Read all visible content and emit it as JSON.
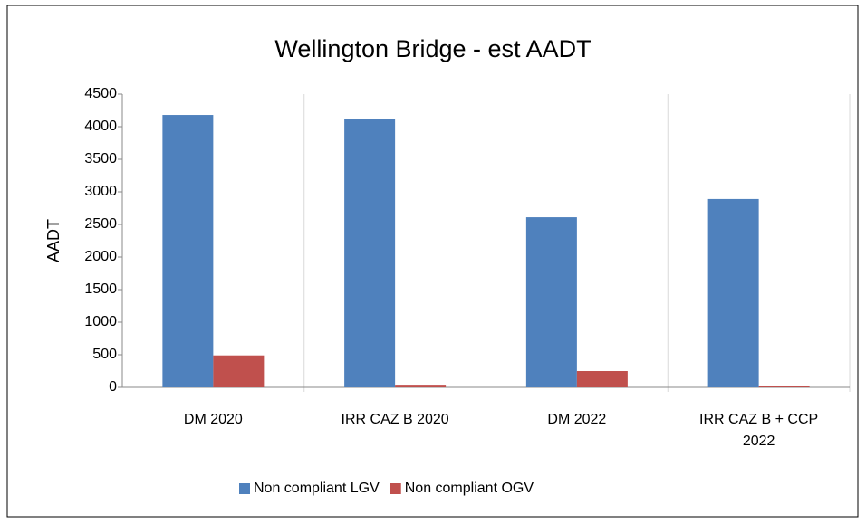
{
  "chart_data": {
    "type": "bar",
    "title": "Wellington Bridge - est AADT",
    "y_label": "AADT",
    "categories": [
      "DM 2020",
      "IRR CAZ B 2020",
      "DM 2022",
      "IRR CAZ B + CCP 2022"
    ],
    "series": [
      {
        "name": "Non compliant LGV",
        "color": "#4f81bd",
        "values": [
          4180,
          4125,
          2610,
          2890
        ]
      },
      {
        "name": "Non compliant OGV",
        "color": "#c0504d",
        "values": [
          490,
          40,
          250,
          20
        ]
      }
    ],
    "ylim": [
      0,
      4500
    ],
    "yticks": [
      0,
      500,
      1000,
      1500,
      2000,
      2500,
      3000,
      3500,
      4000,
      4500
    ],
    "grid": false,
    "legend": "bottom"
  }
}
